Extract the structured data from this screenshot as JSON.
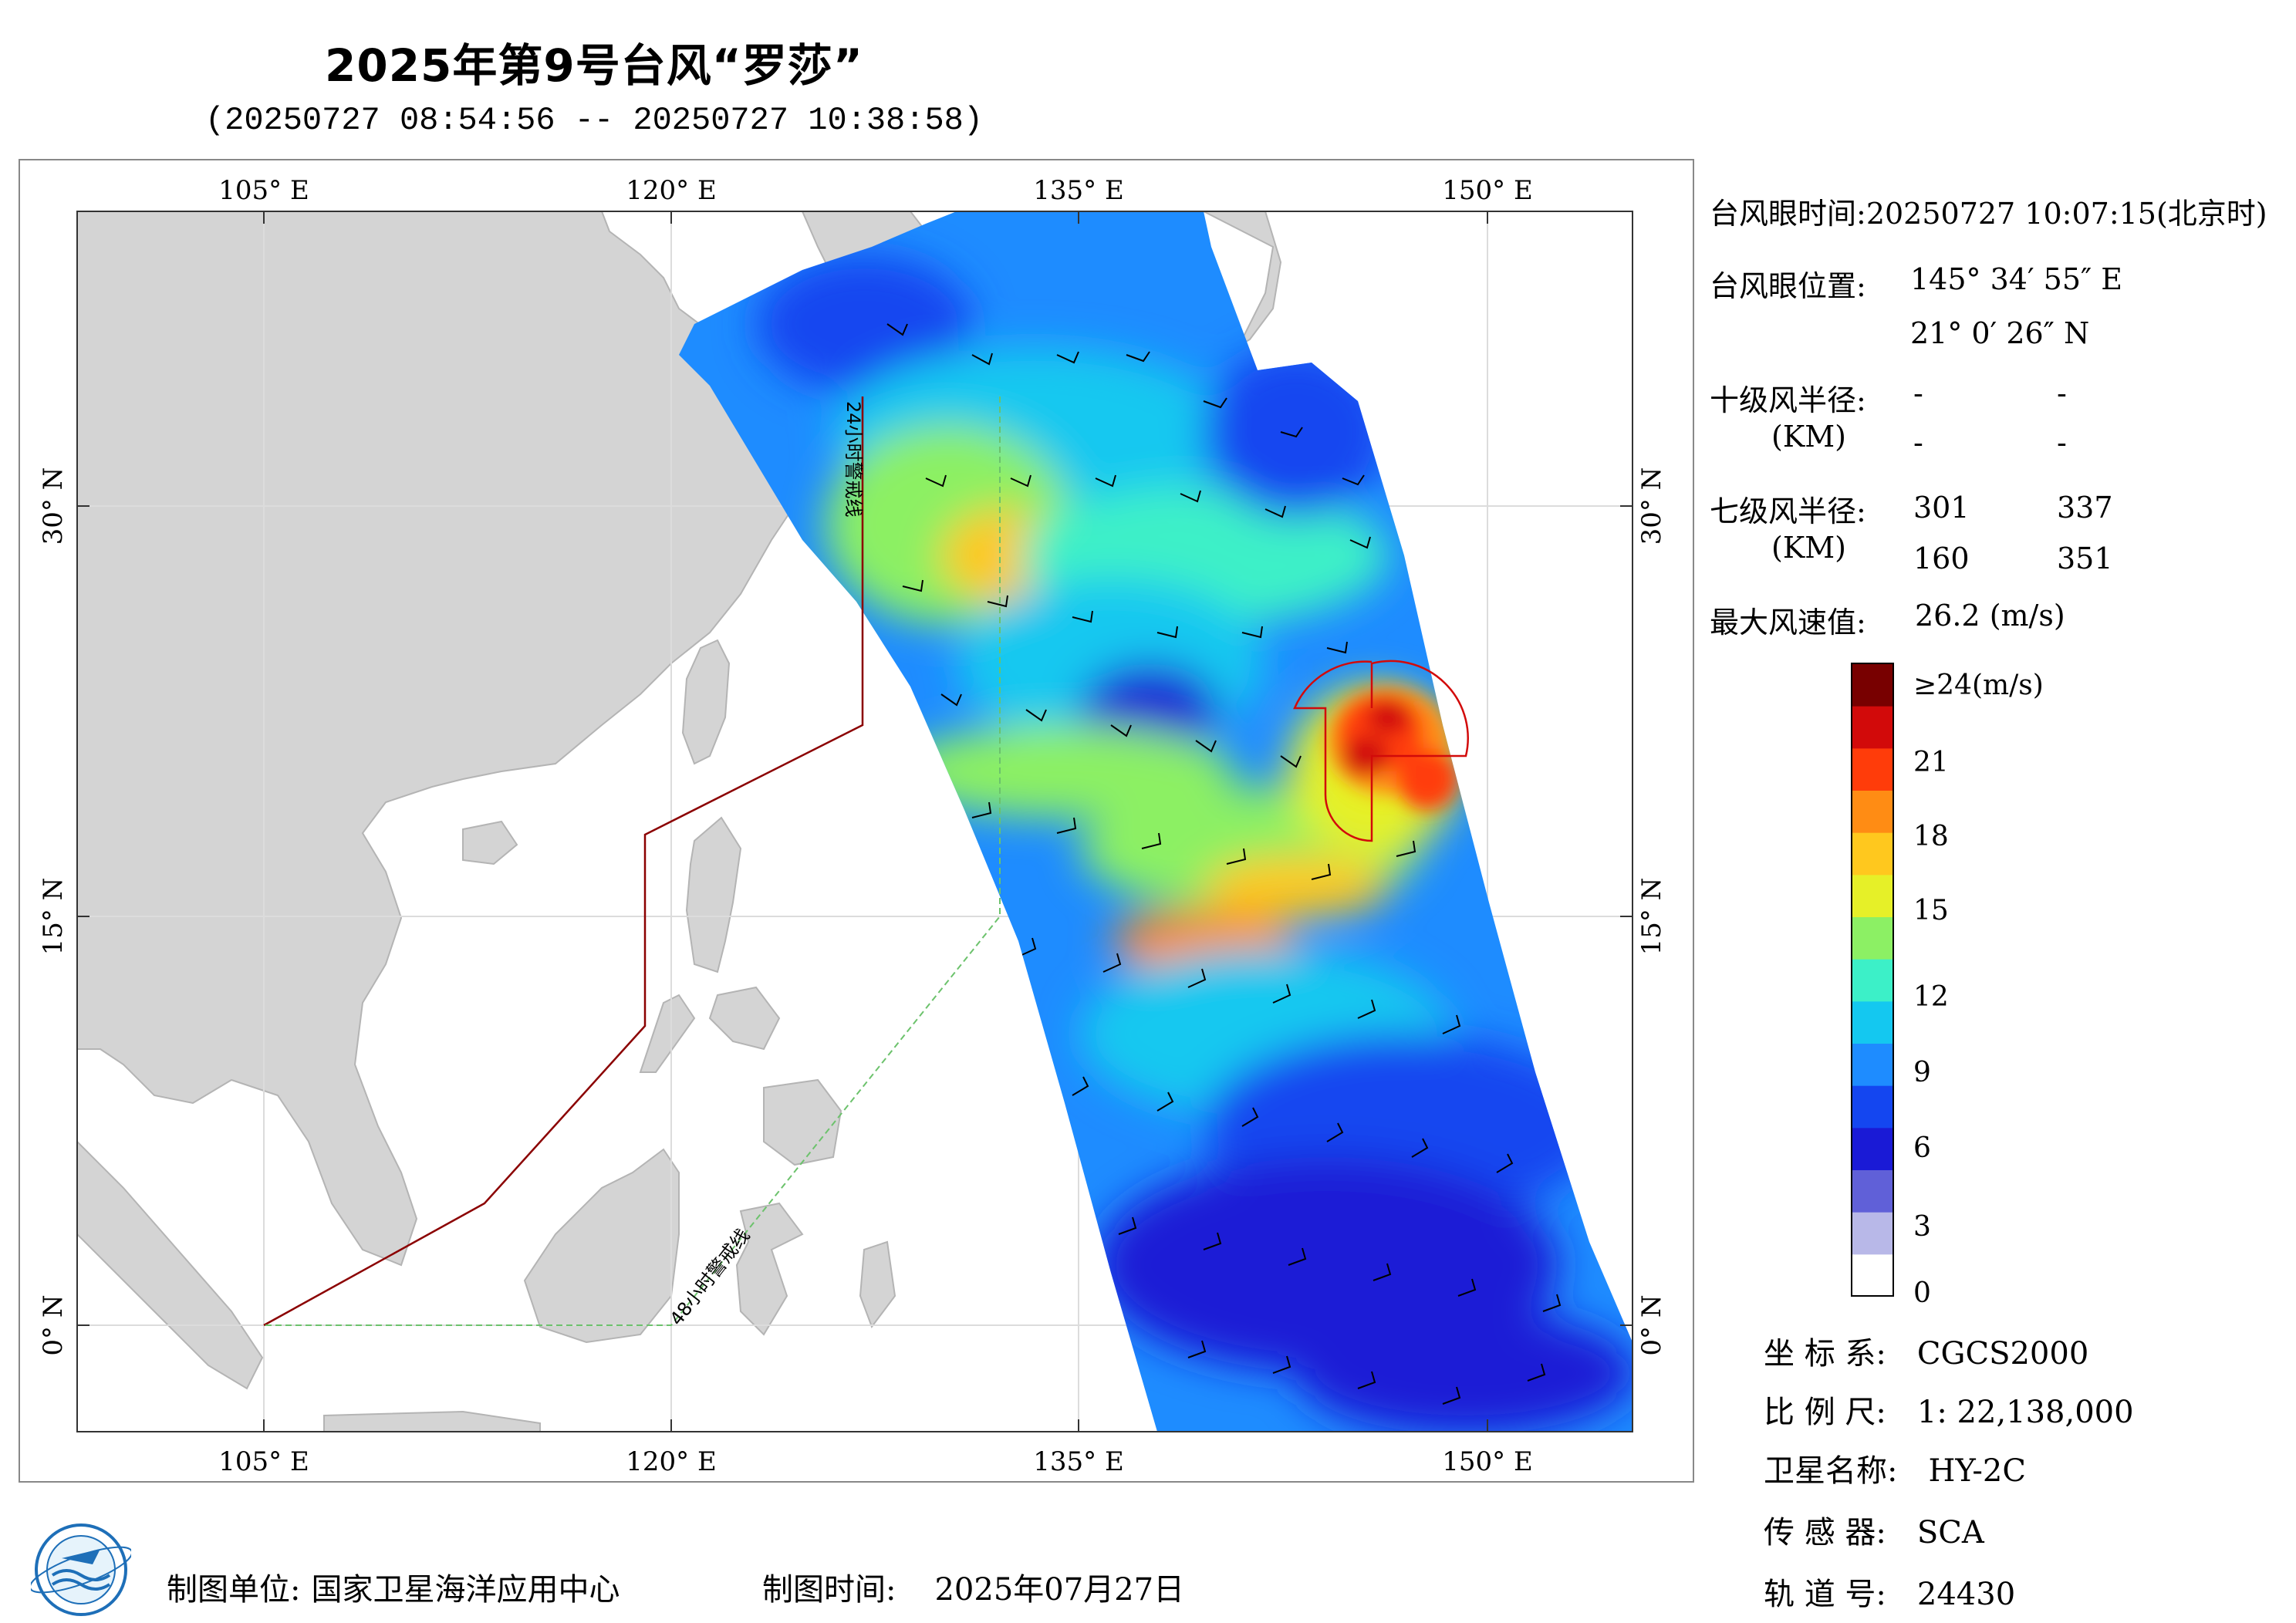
{
  "title": "2025年第9号台风“罗莎”",
  "subtitle": "(20250727 08:54:56 -- 20250727 10:38:58)",
  "axes": {
    "lon_labels": [
      "105° E",
      "120° E",
      "135° E",
      "150° E"
    ],
    "lat_labels": [
      "30° N",
      "15° N",
      "0° N"
    ]
  },
  "map_labels": {
    "line_24h": "24小时警戒线",
    "line_48h": "48小时警戒线"
  },
  "info": {
    "eye_time_label": "台风眼时间:",
    "eye_time_value": "20250727 10:07:15(北京时)",
    "eye_pos_label": "台风眼位置:",
    "eye_lon": "145° 34′ 55″ E",
    "eye_lat": "21° 0′ 26″ N",
    "r10_label": "十级风半径:",
    "r10_unit": "(KM)",
    "r10_values": [
      "-",
      "-",
      "-",
      "-"
    ],
    "r7_label": "七级风半径:",
    "r7_unit": "(KM)",
    "r7_values": [
      "301",
      "337",
      "160",
      "351"
    ],
    "max_wind_label": "最大风速值:",
    "max_wind_value": "26.2  (m/s)"
  },
  "colorbar": {
    "labels": [
      "≥24(m/s)",
      "21",
      "18",
      "15",
      "12",
      "9",
      "6",
      "3",
      "0"
    ],
    "colors": [
      "#ffffff",
      "#b8b8e8",
      "#6060d8",
      "#1a1ad6",
      "#1446f0",
      "#1e8cff",
      "#14c8f0",
      "#3cf0c8",
      "#8cf064",
      "#e6f028",
      "#ffc81e",
      "#ff8c14",
      "#ff3c0a",
      "#d20a0a",
      "#780000"
    ]
  },
  "meta": [
    {
      "label": "坐 标 系:",
      "value": "CGCS2000"
    },
    {
      "label": "比 例 尺:",
      "value": "1: 22,138,000"
    },
    {
      "label": "卫星名称:",
      "value": "HY-2C"
    },
    {
      "label": "传 感 器:",
      "value": "SCA"
    },
    {
      "label": "轨 道 号:",
      "value": "24430"
    }
  ],
  "footer": {
    "unit_label": "制图单位:",
    "unit_value": "国家卫星海洋应用中心",
    "date_label": "制图时间:",
    "date_value": "2025年07月27日"
  }
}
